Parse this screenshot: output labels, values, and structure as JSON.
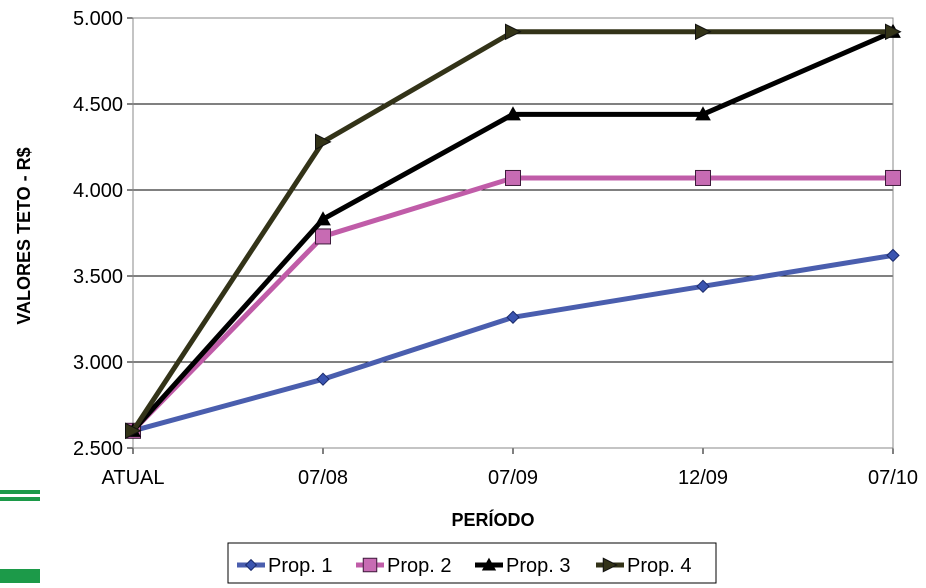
{
  "chart_data": {
    "type": "line",
    "categories": [
      "ATUAL",
      "07/08",
      "07/09",
      "12/09",
      "07/10"
    ],
    "ylabel": "VALORES TETO - R$",
    "xlabel": "PERÍODO",
    "ylim": [
      2500,
      5000
    ],
    "yticks": [
      2500,
      3000,
      3500,
      4000,
      4500,
      5000
    ],
    "ytick_labels": [
      "2.500",
      "3.000",
      "3.500",
      "4.000",
      "4.500",
      "5.000"
    ],
    "grid": "horizontal",
    "legend_position": "bottom",
    "series": [
      {
        "name": "Prop. 1",
        "values": [
          2600,
          2900,
          3260,
          3440,
          3620
        ],
        "color": "#4a5eae",
        "marker": "diamond",
        "marker_fill": "#3a54b0"
      },
      {
        "name": "Prop. 2",
        "values": [
          2600,
          3730,
          4070,
          4070,
          4070
        ],
        "color": "#c05ca8",
        "marker": "square",
        "marker_fill": "#c76bb3"
      },
      {
        "name": "Prop. 3",
        "values": [
          2600,
          3830,
          4440,
          4440,
          4920
        ],
        "color": "#000000",
        "marker": "triangle",
        "marker_fill": "#000000"
      },
      {
        "name": "Prop. 4",
        "values": [
          2600,
          4280,
          4920,
          4920,
          4920
        ],
        "color": "#333318",
        "marker": "right-triangle",
        "marker_fill": "#333318"
      }
    ]
  },
  "decor": {
    "left_mark_color": "#1c9a49"
  }
}
